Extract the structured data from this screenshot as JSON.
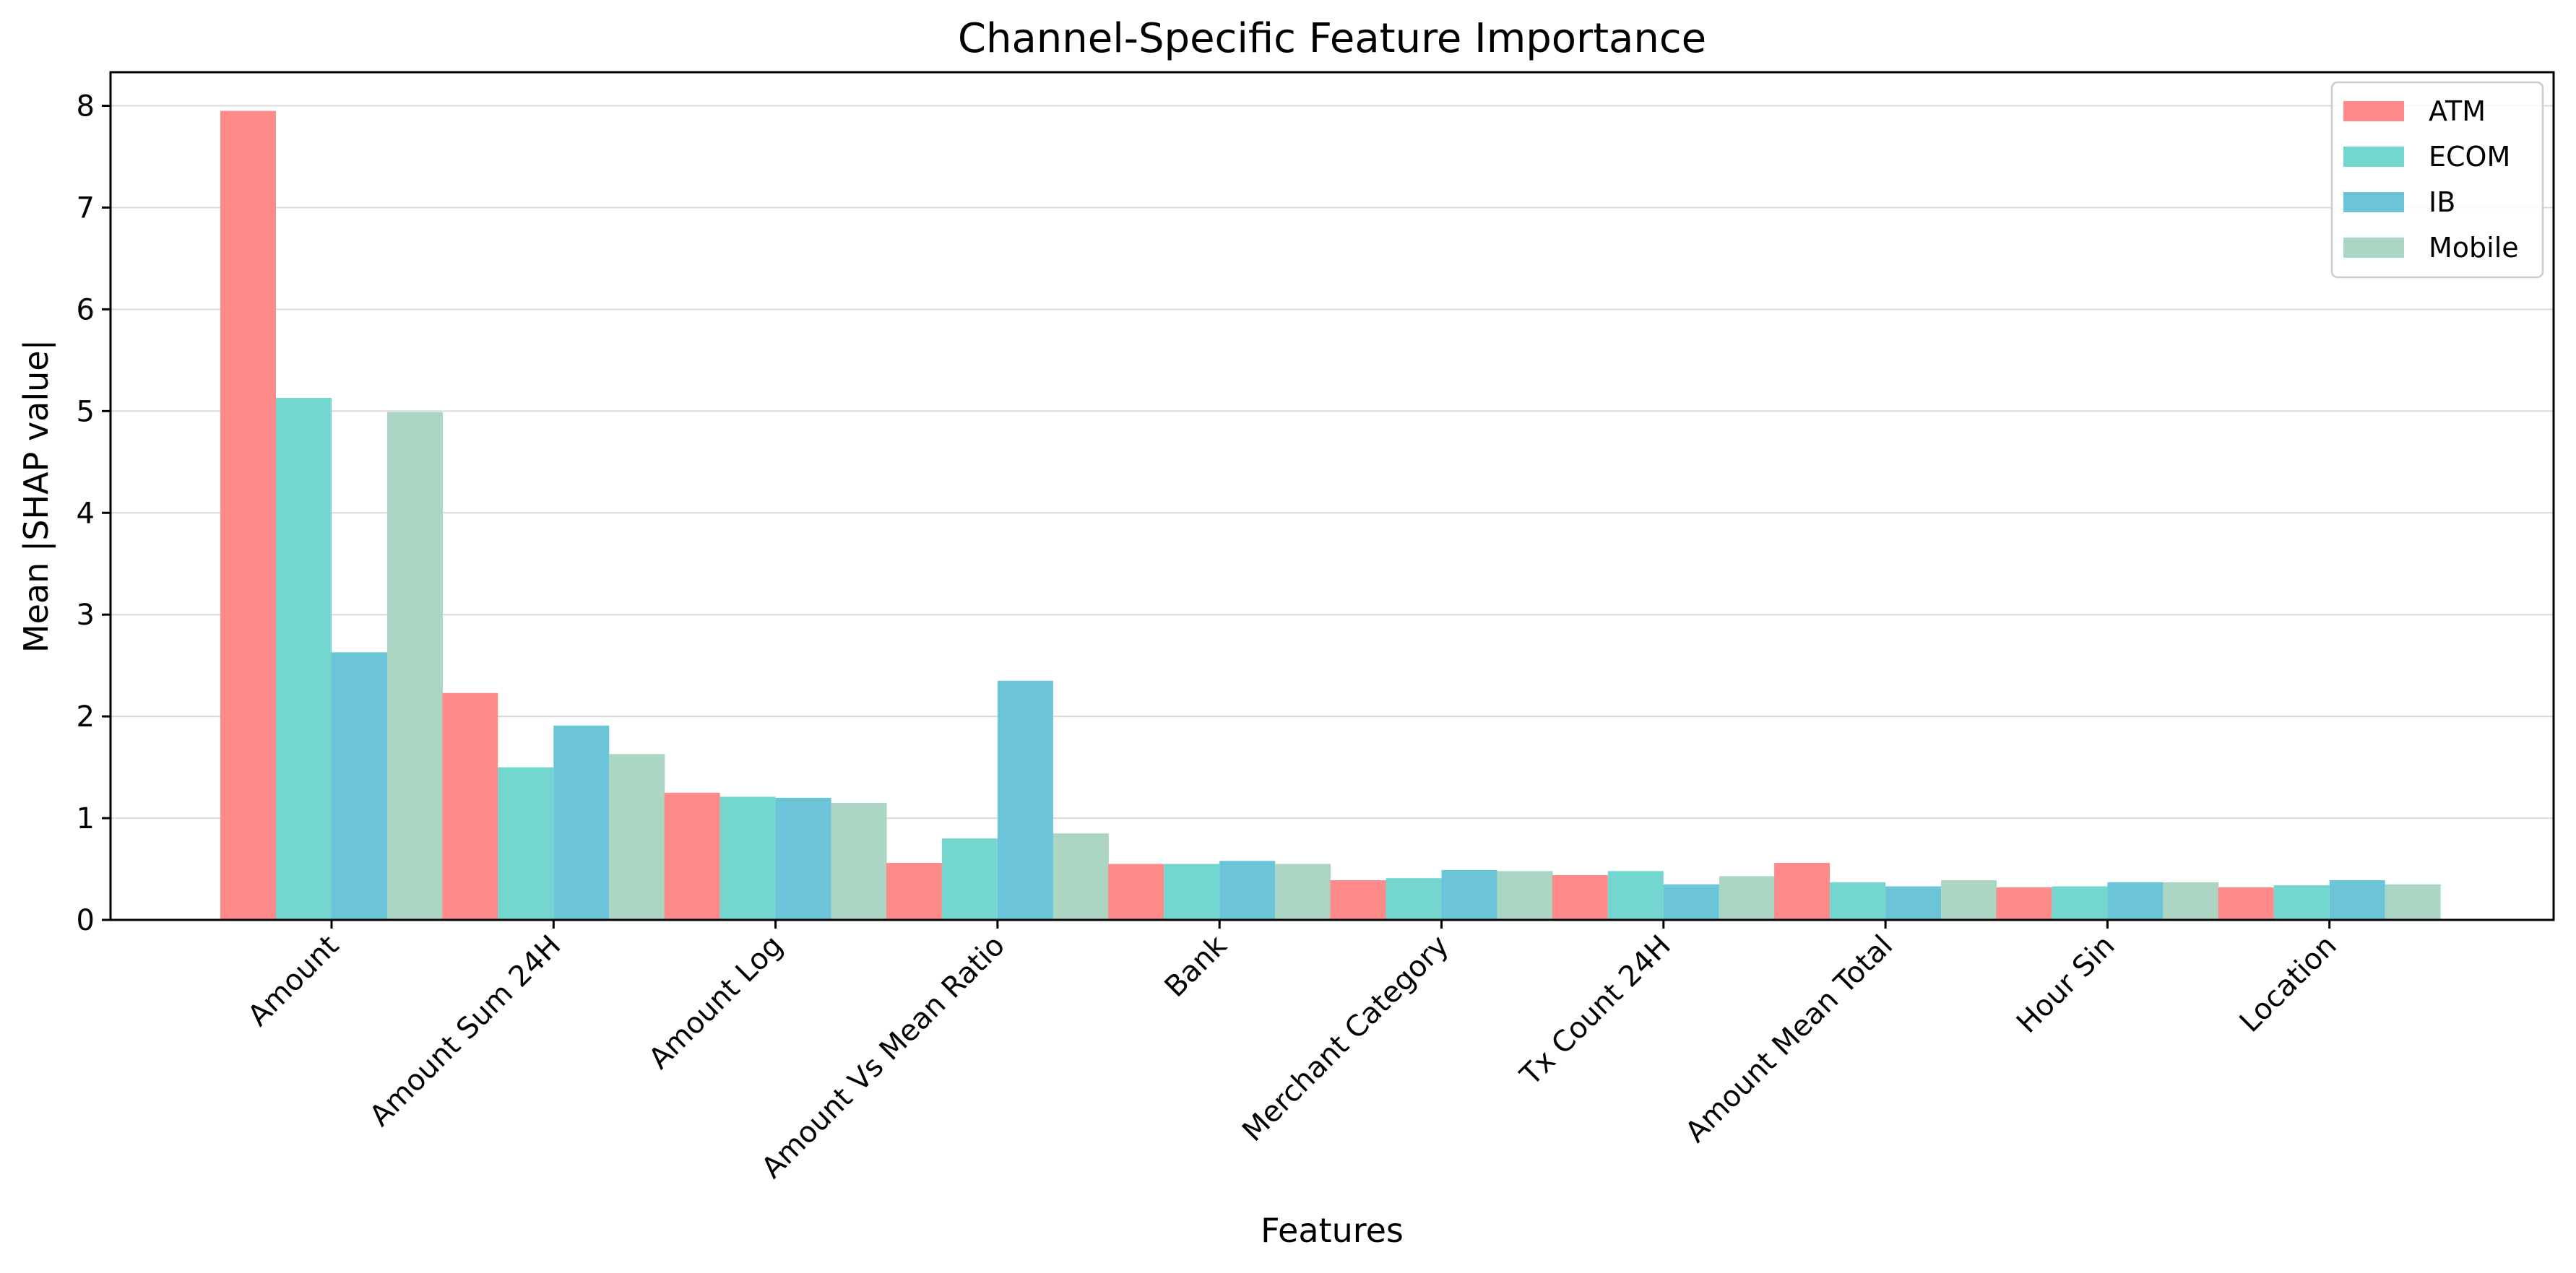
{
  "chart_data": {
    "type": "bar",
    "title": "Channel-Specific Feature Importance",
    "xlabel": "Features",
    "ylabel": "Mean |SHAP value|",
    "ylim": [
      0,
      8.33
    ],
    "yticks": [
      0,
      1,
      2,
      3,
      4,
      5,
      6,
      7,
      8
    ],
    "grid": "horizontal",
    "legend_position": "top-right",
    "categories": [
      "Amount",
      "Amount Sum 24H",
      "Amount Log",
      "Amount Vs Mean Ratio",
      "Bank",
      "Merchant Category",
      "Tx Count 24H",
      "Amount Mean Total",
      "Hour Sin",
      "Location"
    ],
    "series": [
      {
        "name": "ATM",
        "color": "#ff8a8a",
        "values": [
          7.95,
          2.23,
          1.25,
          0.56,
          0.55,
          0.39,
          0.44,
          0.56,
          0.32,
          0.32
        ]
      },
      {
        "name": "ECOM",
        "color": "#73d6cf",
        "values": [
          5.13,
          1.5,
          1.21,
          0.8,
          0.55,
          0.41,
          0.48,
          0.37,
          0.33,
          0.34
        ]
      },
      {
        "name": "IB",
        "color": "#6cc4d9",
        "values": [
          2.63,
          1.91,
          1.2,
          2.35,
          0.58,
          0.49,
          0.35,
          0.33,
          0.37,
          0.39
        ]
      },
      {
        "name": "Mobile",
        "color": "#abd6c3",
        "values": [
          4.99,
          1.63,
          1.15,
          0.85,
          0.55,
          0.48,
          0.43,
          0.39,
          0.37,
          0.35
        ]
      }
    ]
  }
}
